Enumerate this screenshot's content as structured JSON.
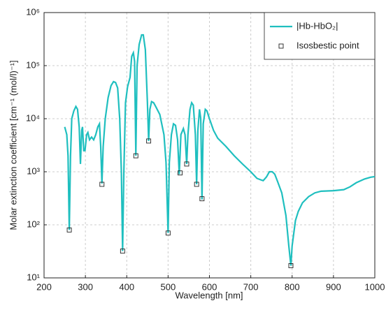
{
  "chart_data": {
    "type": "line",
    "xlabel": "Wavelength [nm]",
    "ylabel": "Molar extinction coefficient [cm⁻¹ (mol/l)⁻¹]",
    "xlim": [
      200,
      1000
    ],
    "xticks": [
      200,
      300,
      400,
      500,
      600,
      700,
      800,
      900,
      1000
    ],
    "ylim": [
      10,
      1000000
    ],
    "log_y": true,
    "yticks": [
      {
        "value": 10,
        "label": "10¹"
      },
      {
        "value": 100,
        "label": "10²"
      },
      {
        "value": 1000,
        "label": "10³"
      },
      {
        "value": 10000,
        "label": "10⁴"
      },
      {
        "value": 100000,
        "label": "10⁵"
      },
      {
        "value": 1000000,
        "label": "10⁶"
      }
    ],
    "grid": true,
    "legend": "upper right",
    "series": [
      {
        "name": "|Hb-HbO₂|",
        "type": "line",
        "color": "#1fbfbf",
        "x": [
          250,
          255,
          258,
          261,
          264,
          267,
          272,
          277,
          281,
          285,
          288,
          291,
          293,
          296,
          299,
          303,
          306,
          310,
          315,
          320,
          325,
          330,
          334,
          337,
          340,
          343,
          348,
          355,
          362,
          368,
          373,
          378,
          383,
          387,
          390,
          393,
          397,
          402,
          408,
          412,
          416,
          419,
          422,
          425,
          430,
          436,
          440,
          445,
          450,
          453,
          456,
          460,
          465,
          470,
          480,
          490,
          495,
          500,
          503,
          508,
          513,
          518,
          523,
          527,
          531,
          537,
          541,
          545,
          548,
          553,
          557,
          561,
          566,
          569,
          572,
          576,
          579,
          582,
          585,
          590,
          594,
          600,
          610,
          620,
          640,
          660,
          680,
          700,
          715,
          725,
          730,
          738,
          745,
          752,
          758,
          765,
          775,
          785,
          792,
          797,
          800,
          808,
          815,
          825,
          840,
          855,
          870,
          900,
          925,
          940,
          955,
          975,
          990,
          1000
        ],
        "values": [
          7000,
          5000,
          2000,
          80,
          2000,
          10000,
          14000,
          17000,
          15000,
          7000,
          1400,
          6000,
          7000,
          2500,
          2500,
          5000,
          5500,
          4000,
          4500,
          4000,
          5000,
          7000,
          8000,
          3000,
          600,
          3000,
          10000,
          25000,
          42000,
          50000,
          48000,
          38000,
          10000,
          1000,
          32,
          1000,
          20000,
          40000,
          60000,
          150000,
          175000,
          120000,
          2000,
          100000,
          250000,
          380000,
          380000,
          200000,
          20000,
          3800,
          15000,
          21000,
          20000,
          17000,
          12000,
          5000,
          1500,
          70,
          1500,
          5000,
          8000,
          7500,
          4000,
          900,
          5000,
          6500,
          5000,
          1400,
          5000,
          15000,
          20000,
          18000,
          5000,
          580,
          6000,
          15000,
          10000,
          300,
          8000,
          15000,
          14000,
          10000,
          6000,
          4300,
          3000,
          2000,
          1400,
          1000,
          750,
          700,
          680,
          800,
          1000,
          1000,
          900,
          650,
          400,
          150,
          40,
          17,
          40,
          120,
          180,
          260,
          340,
          400,
          430,
          440,
          460,
          520,
          620,
          730,
          790,
          810
        ]
      },
      {
        "name": "Isosbestic point",
        "type": "scatter",
        "color": "#222222",
        "x": [
          261,
          340,
          390,
          422,
          453,
          500,
          529,
          545,
          569,
          582,
          797
        ],
        "values": [
          80,
          580,
          32,
          2000,
          3800,
          70,
          950,
          1400,
          580,
          310,
          17
        ]
      }
    ]
  }
}
